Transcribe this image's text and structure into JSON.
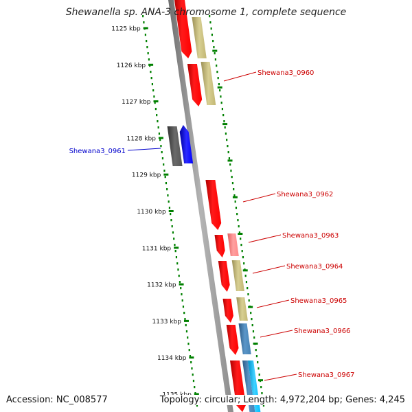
{
  "title": "Shewanella sp. ANA-3 chromosome 1, complete sequence",
  "accession": "Accession: NC_008577",
  "topology": "Topology: circular; Length: 4,972,204 bp; Genes: 4,245",
  "scale_ticks": [
    "1125 kbp",
    "1126 kbp",
    "1127 kbp",
    "1128 kbp",
    "1129 kbp",
    "1130 kbp",
    "1131 kbp",
    "1132 kbp",
    "1133 kbp",
    "1134 kbp",
    "1135 kbp"
  ],
  "colors": {
    "forward_cds": "#ff0000",
    "forward_cds_light": "#ff8a8a",
    "reverse_blue": "#0000ff",
    "dark_gene": "#555555",
    "khaki": "#c8bd7a",
    "steel_blue": "#4682b4",
    "cyan": "#00bfff",
    "backbone": "#8c8c8c",
    "scale_dots": "#008000",
    "label_red": "#cc0000",
    "label_blue": "#0000cc"
  },
  "gene_labels": [
    {
      "name": "Shewana3_0960",
      "color": "red"
    },
    {
      "name": "Shewana3_0961",
      "color": "blue"
    },
    {
      "name": "Shewana3_0962",
      "color": "red"
    },
    {
      "name": "Shewana3_0963",
      "color": "red"
    },
    {
      "name": "Shewana3_0964",
      "color": "red"
    },
    {
      "name": "Shewana3_0965",
      "color": "red"
    },
    {
      "name": "Shewana3_0966",
      "color": "red"
    },
    {
      "name": "Shewana3_0967",
      "color": "red"
    }
  ]
}
